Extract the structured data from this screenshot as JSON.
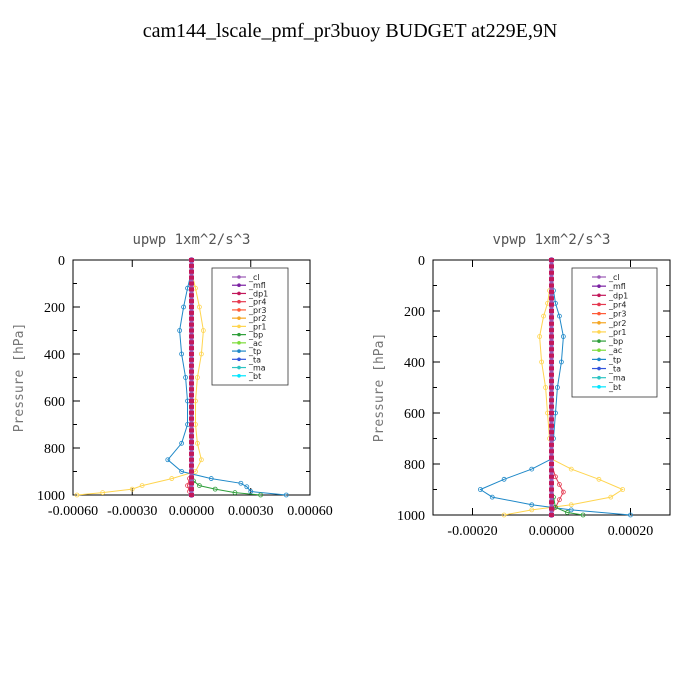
{
  "figure": {
    "title": "cam144_lscale_pmf_pr3buoy  BUDGET at229E,9N"
  },
  "legend_entries": [
    "_cl",
    "_mfl",
    "_dp1",
    "_pr4",
    "_pr3",
    "_pr2",
    "_pr1",
    "_bp",
    "_ac",
    "_tp",
    "_ta",
    "_ma",
    "_bt"
  ],
  "colors": {
    "_cl": "#9b59b6",
    "_mfl": "#7a1fa2",
    "_dp1": "#c2185b",
    "_pr4": "#e53950",
    "_pr3": "#ff5a36",
    "_pr2": "#f5a623",
    "_pr1": "#ffd54f",
    "_bp": "#2e9e3a",
    "_ac": "#7ddc3a",
    "_tp": "#1e88c8",
    "_ta": "#3355dd",
    "_ma": "#2ec4c4",
    "_bt": "#00e5ff"
  },
  "chart_data": [
    {
      "type": "line",
      "title": "upwp   1xm^2/s^3",
      "ylabel": "Pressure [hPa]",
      "xlim": [
        -0.0006,
        0.0006
      ],
      "ylim": [
        1000,
        0
      ],
      "xticks": [
        "-0.00060",
        "-0.00030",
        "0.00000",
        "0.00030",
        "0.00060"
      ],
      "xtick_values": [
        -0.0006,
        -0.0003,
        0,
        0.0003,
        0.0006
      ],
      "yticks": [
        "0",
        "200",
        "400",
        "600",
        "800",
        "1000"
      ],
      "ytick_values": [
        0,
        200,
        400,
        600,
        800,
        1000
      ],
      "series": [
        {
          "name": "_pr1",
          "x": [
            0,
            2e-05,
            4e-05,
            6e-05,
            5e-05,
            3e-05,
            2e-05,
            2e-05,
            3e-05,
            5e-05,
            2e-05,
            -0.0001,
            -0.00025,
            -0.0003,
            -0.00045,
            -0.00058
          ],
          "y": [
            50,
            120,
            200,
            300,
            400,
            500,
            600,
            700,
            780,
            850,
            900,
            930,
            960,
            975,
            990,
            1000
          ]
        },
        {
          "name": "_tp",
          "x": [
            0,
            -2e-05,
            -4e-05,
            -6e-05,
            -5e-05,
            -3e-05,
            -2e-05,
            -2e-05,
            -5e-05,
            -0.00012,
            -5e-05,
            0.0001,
            0.00025,
            0.00028,
            0.0003,
            0.00048
          ],
          "y": [
            50,
            120,
            200,
            300,
            400,
            500,
            600,
            700,
            780,
            850,
            900,
            930,
            950,
            965,
            985,
            1000
          ]
        },
        {
          "name": "_bp",
          "x": [
            0,
            0,
            0,
            0,
            1e-05,
            4e-05,
            0.00012,
            0.00022,
            0.00035
          ],
          "y": [
            0,
            400,
            800,
            900,
            940,
            960,
            975,
            990,
            1000
          ]
        },
        {
          "name": "_pr4",
          "x": [
            0,
            0,
            0,
            -1e-05,
            -2e-05,
            -1e-05,
            0
          ],
          "y": [
            0,
            800,
            900,
            930,
            960,
            985,
            1000
          ]
        },
        {
          "name": "_cl",
          "x": [
            0,
            0
          ],
          "y": [
            0,
            1000
          ]
        }
      ]
    },
    {
      "type": "line",
      "title": "vpwp   1xm^2/s^3",
      "ylabel": "Pressure [hPa]",
      "xlim": [
        -0.0003,
        0.0003
      ],
      "ylim": [
        1000,
        0
      ],
      "xticks": [
        "-0.00020",
        "0.00000",
        "0.00020"
      ],
      "xtick_values": [
        -0.0002,
        0,
        0.0002
      ],
      "yticks": [
        "0",
        "200",
        "400",
        "600",
        "800",
        "1000"
      ],
      "ytick_values": [
        0,
        200,
        400,
        600,
        800,
        1000
      ],
      "series": [
        {
          "name": "_pr1",
          "x": [
            0,
            -5e-06,
            -1e-05,
            -2e-05,
            -3e-05,
            -2.5e-05,
            -1.5e-05,
            -1e-05,
            -5e-06,
            0,
            5e-05,
            0.00012,
            0.00018,
            0.00015,
            5e-05,
            -5e-05,
            -0.00012
          ],
          "y": [
            50,
            120,
            170,
            220,
            300,
            400,
            500,
            600,
            700,
            780,
            820,
            860,
            900,
            930,
            960,
            980,
            1000
          ]
        },
        {
          "name": "_tp",
          "x": [
            0,
            5e-06,
            1e-05,
            2e-05,
            3e-05,
            2.5e-05,
            1.5e-05,
            1e-05,
            5e-06,
            0,
            -5e-05,
            -0.00012,
            -0.00018,
            -0.00015,
            -5e-05,
            5e-05,
            0.0002
          ],
          "y": [
            50,
            120,
            170,
            220,
            300,
            400,
            500,
            600,
            700,
            780,
            820,
            860,
            900,
            930,
            960,
            980,
            1000
          ]
        },
        {
          "name": "_pr4",
          "x": [
            0,
            0,
            1e-05,
            2e-05,
            3e-05,
            2e-05,
            1e-05,
            0
          ],
          "y": [
            0,
            800,
            850,
            880,
            910,
            940,
            970,
            1000
          ]
        },
        {
          "name": "_bp",
          "x": [
            0,
            0,
            5e-06,
            1e-05,
            4e-05,
            8e-05
          ],
          "y": [
            0,
            850,
            930,
            970,
            990,
            1000
          ]
        },
        {
          "name": "_cl",
          "x": [
            0,
            0
          ],
          "y": [
            0,
            1000
          ]
        }
      ]
    }
  ]
}
